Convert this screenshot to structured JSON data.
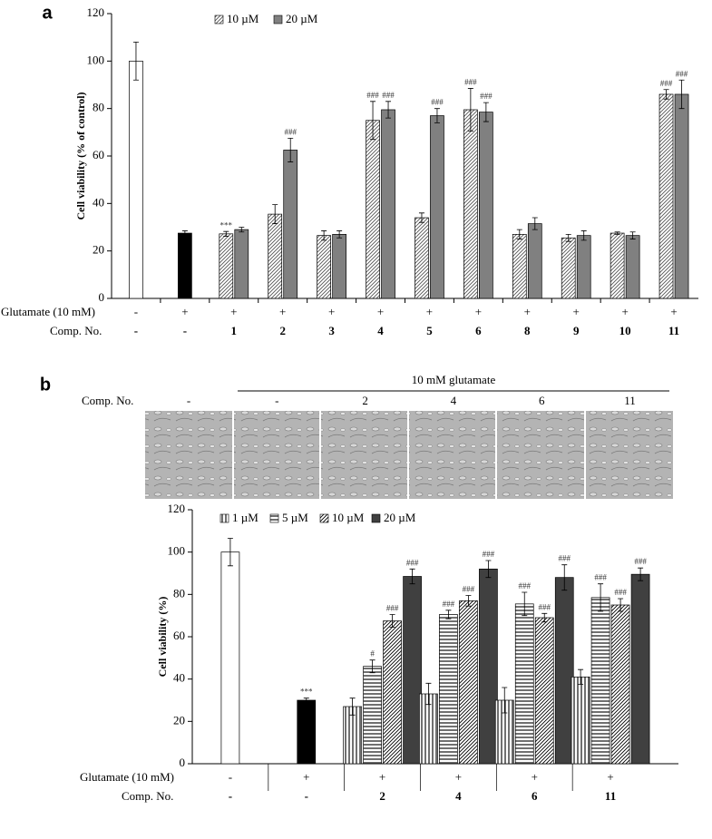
{
  "chart_data": [
    {
      "type": "bar",
      "panel": "a",
      "ylabel": "Cell viability (% of control)",
      "ylim": [
        0,
        120
      ],
      "yticks": [
        0,
        20,
        40,
        60,
        80,
        100,
        120
      ],
      "row_labels": [
        "Glutamate (10 mM)",
        "Comp. No."
      ],
      "glutamate": [
        "-",
        "+",
        "+",
        "+",
        "+",
        "+",
        "+",
        "+",
        "+",
        "+",
        "+",
        "+"
      ],
      "categories": [
        "-",
        "-",
        "1",
        "2",
        "3",
        "4",
        "5",
        "6",
        "8",
        "9",
        "10",
        "11"
      ],
      "single": {
        "values": [
          100,
          27.5,
          null,
          null,
          null,
          null,
          null,
          null,
          null,
          null,
          null,
          null
        ],
        "errors": [
          8,
          1,
          null,
          null,
          null,
          null,
          null,
          null,
          null,
          null,
          null,
          null
        ],
        "colors": [
          "#ffffff",
          "#000000",
          null,
          null,
          null,
          null,
          null,
          null,
          null,
          null,
          null,
          null
        ]
      },
      "series": [
        {
          "name": "10 µM",
          "color": "#555555",
          "pattern": "diagonal",
          "values": [
            null,
            null,
            27.2,
            35.5,
            26.5,
            75,
            34,
            79.5,
            27,
            25.5,
            27.5,
            86
          ],
          "errors": [
            null,
            null,
            1,
            4,
            2,
            8,
            2,
            9,
            2,
            1.5,
            0.5,
            2
          ],
          "annotations": [
            null,
            null,
            "***",
            null,
            null,
            "###",
            null,
            "###",
            null,
            null,
            null,
            "###"
          ]
        },
        {
          "name": "20 µM",
          "color": "#808080",
          "pattern": "solid",
          "values": [
            null,
            null,
            29,
            62.5,
            27,
            79.5,
            77,
            78.5,
            31.5,
            26.5,
            26.5,
            86
          ],
          "errors": [
            null,
            null,
            1,
            5,
            1.5,
            3.5,
            3,
            4,
            2.5,
            2,
            1.5,
            6
          ],
          "annotations": [
            null,
            null,
            null,
            "###",
            null,
            "###",
            "###",
            "###",
            null,
            null,
            null,
            "###"
          ]
        }
      ]
    },
    {
      "type": "bar",
      "panel": "b",
      "ylabel": "Cell viability (%)",
      "image_row": {
        "header": "10 mM glutamate",
        "label": "Comp. No.",
        "labels": [
          "-",
          "-",
          "2",
          "4",
          "6",
          "11"
        ]
      },
      "ylim": [
        0,
        120
      ],
      "yticks": [
        0,
        20,
        40,
        60,
        80,
        100,
        120
      ],
      "row_labels": [
        "Glutamate (10 mM)",
        "Comp. No."
      ],
      "glutamate": [
        "-",
        "+",
        "+",
        "+",
        "+",
        "+"
      ],
      "categories": [
        "-",
        "-",
        "2",
        "4",
        "6",
        "11"
      ],
      "single": {
        "values": [
          100,
          30,
          null,
          null,
          null,
          null
        ],
        "errors": [
          6.5,
          1,
          null,
          null,
          null,
          null
        ],
        "colors": [
          "#ffffff",
          "#000000",
          null,
          null,
          null,
          null
        ],
        "annotations": [
          null,
          "***",
          null,
          null,
          null,
          null
        ]
      },
      "series": [
        {
          "name": "1 µM",
          "color": "#333333",
          "pattern": "vertical",
          "values": [
            null,
            null,
            27,
            33,
            30,
            41
          ],
          "errors": [
            null,
            null,
            4,
            5,
            6,
            3.5
          ],
          "annotations": [
            null,
            null,
            null,
            null,
            null,
            null
          ]
        },
        {
          "name": "5 µM",
          "color": "#333333",
          "pattern": "horizontal",
          "values": [
            null,
            null,
            46,
            70.5,
            75.5,
            78.5
          ],
          "errors": [
            null,
            null,
            3,
            2,
            5.5,
            6.5
          ],
          "annotations": [
            null,
            null,
            "#",
            "###",
            "###",
            "###"
          ]
        },
        {
          "name": "10 µM",
          "color": "#000000",
          "pattern": "diagonal",
          "values": [
            null,
            null,
            67.5,
            77,
            69,
            75
          ],
          "errors": [
            null,
            null,
            3,
            2.5,
            2,
            3
          ],
          "annotations": [
            null,
            null,
            "###",
            "###",
            "###",
            "###"
          ]
        },
        {
          "name": "20 µM",
          "color": "#404040",
          "pattern": "solid",
          "values": [
            null,
            null,
            88.5,
            92,
            88,
            89.5
          ],
          "errors": [
            null,
            null,
            3.5,
            4,
            6,
            3
          ],
          "annotations": [
            null,
            null,
            "###",
            "###",
            "###",
            "###"
          ]
        }
      ]
    }
  ]
}
